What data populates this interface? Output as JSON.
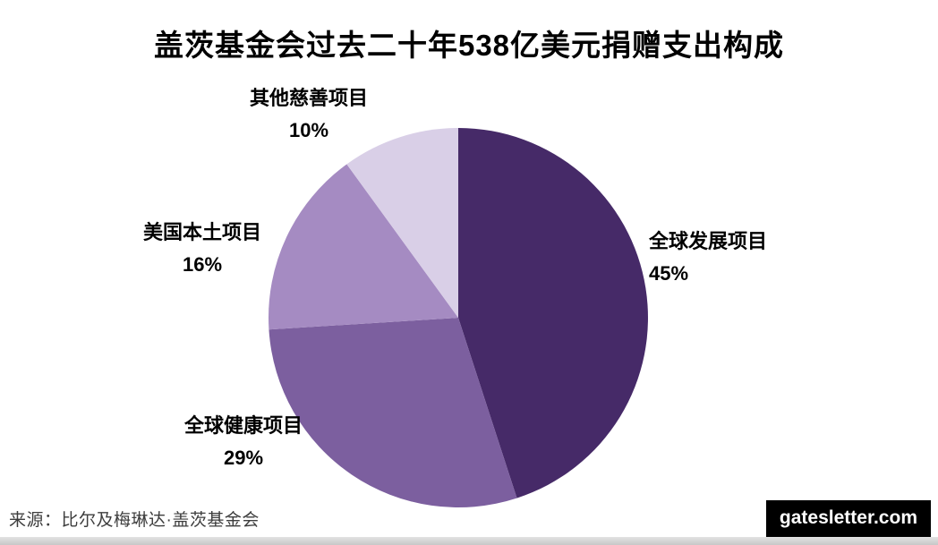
{
  "page": {
    "title": "盖茨基金会过去二十年538亿美元捐赠支出构成",
    "source": "来源：比尔及梅琳达·盖茨基金会",
    "brand": "gatesletter.com"
  },
  "chart_data": {
    "type": "pie",
    "title": "盖茨基金会过去二十年538亿美元捐赠支出构成",
    "direction": "clockwise",
    "start_angle_deg": 0,
    "legend_position": "outside-labels",
    "slices": [
      {
        "label": "全球发展项目",
        "value": 45,
        "percent_label": "45%",
        "color": "#462a68"
      },
      {
        "label": "全球健康项目",
        "value": 29,
        "percent_label": "29%",
        "color": "#7c5f9f"
      },
      {
        "label": "美国本土项目",
        "value": 16,
        "percent_label": "16%",
        "color": "#a58bc2"
      },
      {
        "label": "其他慈善项目",
        "value": 10,
        "percent_label": "10%",
        "color": "#d9cfe7"
      }
    ],
    "source": "来源：比尔及梅琳达·盖茨基金会"
  }
}
